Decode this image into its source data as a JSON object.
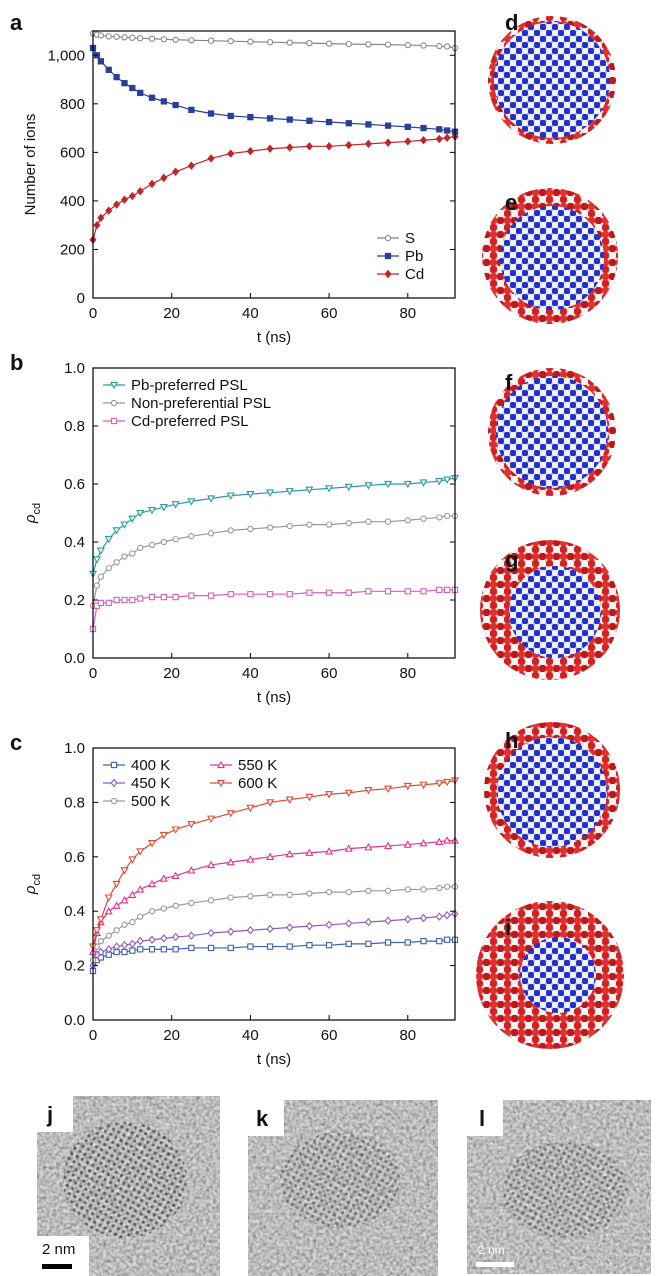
{
  "chart_data": [
    {
      "type": "line",
      "panel_label": "a",
      "y_label": "Number of ions",
      "x_label": "t (ns)",
      "x": [
        0,
        1,
        2,
        4,
        6,
        8,
        10,
        12,
        15,
        18,
        21,
        25,
        30,
        35,
        40,
        45,
        50,
        55,
        60,
        65,
        70,
        75,
        80,
        84,
        88,
        90,
        92
      ],
      "xlim": [
        0,
        92
      ],
      "xticks": [
        0,
        20,
        40,
        60,
        80
      ],
      "ylim": [
        0,
        1100
      ],
      "yticks": [
        0,
        200,
        400,
        600,
        800,
        {
          "value": 1000,
          "label": "1,000"
        }
      ],
      "legend": "lower right",
      "series": [
        {
          "name": "S",
          "color": "#888888",
          "marker": "circle",
          "filled": false,
          "values": [
            1090,
            1085,
            1082,
            1078,
            1076,
            1074,
            1072,
            1070,
            1068,
            1066,
            1064,
            1062,
            1060,
            1058,
            1056,
            1054,
            1052,
            1050,
            1048,
            1046,
            1045,
            1044,
            1042,
            1040,
            1038,
            1036,
            1030
          ]
        },
        {
          "name": "Pb",
          "color": "#2b3f9a",
          "marker": "square",
          "filled": true,
          "values": [
            1030,
            1000,
            975,
            940,
            910,
            885,
            865,
            845,
            825,
            810,
            795,
            775,
            760,
            750,
            745,
            740,
            735,
            730,
            725,
            720,
            715,
            710,
            705,
            700,
            695,
            690,
            685
          ]
        },
        {
          "name": "Cd",
          "color": "#c0262c",
          "marker": "diamond",
          "filled": true,
          "values": [
            240,
            300,
            330,
            360,
            385,
            405,
            420,
            440,
            470,
            495,
            520,
            545,
            575,
            595,
            605,
            615,
            620,
            625,
            625,
            630,
            635,
            640,
            645,
            650,
            655,
            660,
            665
          ]
        }
      ]
    },
    {
      "type": "line",
      "panel_label": "b",
      "y_label": "ρ",
      "y_label_sub": "cd",
      "x_label": "t (ns)",
      "x": [
        0,
        1,
        2,
        4,
        6,
        8,
        10,
        12,
        15,
        18,
        21,
        25,
        30,
        35,
        40,
        45,
        50,
        55,
        60,
        65,
        70,
        75,
        80,
        84,
        88,
        90,
        92
      ],
      "xlim": [
        0,
        92
      ],
      "xticks": [
        0,
        20,
        40,
        60,
        80
      ],
      "ylim": [
        0,
        1
      ],
      "yticks": [
        {
          "value": 0,
          "label": "0.0"
        },
        0.2,
        0.4,
        0.6,
        0.8,
        {
          "value": 1,
          "label": "1.0"
        }
      ],
      "legend": "upper left",
      "series": [
        {
          "name": "Pb-preferred PSL",
          "color": "#2a9d98",
          "marker": "triangle-down",
          "filled": false,
          "values": [
            0.29,
            0.34,
            0.37,
            0.41,
            0.44,
            0.46,
            0.48,
            0.5,
            0.51,
            0.52,
            0.53,
            0.54,
            0.55,
            0.56,
            0.565,
            0.57,
            0.575,
            0.58,
            0.585,
            0.59,
            0.595,
            0.6,
            0.6,
            0.605,
            0.61,
            0.615,
            0.62
          ]
        },
        {
          "name": "Non-preferential PSL",
          "color": "#999999",
          "marker": "circle",
          "filled": false,
          "values": [
            0.18,
            0.25,
            0.28,
            0.31,
            0.33,
            0.35,
            0.36,
            0.38,
            0.39,
            0.4,
            0.41,
            0.42,
            0.43,
            0.44,
            0.445,
            0.45,
            0.455,
            0.46,
            0.46,
            0.465,
            0.47,
            0.47,
            0.475,
            0.48,
            0.485,
            0.49,
            0.49
          ]
        },
        {
          "name": "Cd-preferred PSL",
          "color": "#d660b8",
          "marker": "square",
          "filled": false,
          "values": [
            0.1,
            0.18,
            0.19,
            0.19,
            0.2,
            0.2,
            0.2,
            0.205,
            0.21,
            0.21,
            0.21,
            0.215,
            0.215,
            0.22,
            0.22,
            0.22,
            0.22,
            0.225,
            0.225,
            0.225,
            0.23,
            0.23,
            0.23,
            0.23,
            0.235,
            0.235,
            0.235
          ]
        }
      ]
    },
    {
      "type": "line",
      "panel_label": "c",
      "y_label": "ρ",
      "y_label_sub": "cd",
      "x_label": "t (ns)",
      "x": [
        0,
        1,
        2,
        4,
        6,
        8,
        10,
        12,
        15,
        18,
        21,
        25,
        30,
        35,
        40,
        45,
        50,
        55,
        60,
        65,
        70,
        75,
        80,
        84,
        88,
        90,
        92
      ],
      "xlim": [
        0,
        92
      ],
      "xticks": [
        0,
        20,
        40,
        60,
        80
      ],
      "ylim": [
        0,
        1
      ],
      "yticks": [
        {
          "value": 0,
          "label": "0.0"
        },
        0.2,
        0.4,
        0.6,
        0.8,
        {
          "value": 1,
          "label": "1.0"
        }
      ],
      "legend": "upper left",
      "legend_columns": 2,
      "series": [
        {
          "name": "400 K",
          "color": "#3f5fb0",
          "marker": "square",
          "filled": false,
          "values": [
            0.18,
            0.22,
            0.23,
            0.24,
            0.25,
            0.25,
            0.255,
            0.26,
            0.26,
            0.26,
            0.26,
            0.265,
            0.265,
            0.265,
            0.27,
            0.27,
            0.27,
            0.275,
            0.275,
            0.28,
            0.28,
            0.285,
            0.285,
            0.29,
            0.29,
            0.295,
            0.295
          ]
        },
        {
          "name": "450 K",
          "color": "#8a5cc4",
          "marker": "diamond",
          "filled": false,
          "values": [
            0.2,
            0.24,
            0.25,
            0.26,
            0.27,
            0.275,
            0.28,
            0.29,
            0.295,
            0.3,
            0.305,
            0.31,
            0.32,
            0.325,
            0.33,
            0.335,
            0.34,
            0.345,
            0.35,
            0.355,
            0.36,
            0.365,
            0.37,
            0.375,
            0.38,
            0.385,
            0.39
          ]
        },
        {
          "name": "500 K",
          "color": "#999999",
          "marker": "circle",
          "filled": false,
          "values": [
            0.22,
            0.27,
            0.29,
            0.31,
            0.33,
            0.35,
            0.36,
            0.38,
            0.4,
            0.41,
            0.42,
            0.43,
            0.44,
            0.45,
            0.455,
            0.46,
            0.46,
            0.465,
            0.47,
            0.47,
            0.475,
            0.475,
            0.48,
            0.48,
            0.485,
            0.49,
            0.49
          ]
        },
        {
          "name": "550 K",
          "color": "#e0368a",
          "marker": "triangle-up",
          "filled": false,
          "values": [
            0.25,
            0.32,
            0.36,
            0.4,
            0.42,
            0.44,
            0.46,
            0.48,
            0.5,
            0.52,
            0.53,
            0.55,
            0.57,
            0.58,
            0.59,
            0.6,
            0.61,
            0.615,
            0.62,
            0.63,
            0.635,
            0.64,
            0.645,
            0.65,
            0.655,
            0.66,
            0.66
          ]
        },
        {
          "name": "600 K",
          "color": "#e04a35",
          "marker": "triangle-down",
          "filled": false,
          "values": [
            0.27,
            0.33,
            0.37,
            0.45,
            0.5,
            0.55,
            0.59,
            0.62,
            0.65,
            0.68,
            0.7,
            0.72,
            0.74,
            0.76,
            0.78,
            0.8,
            0.81,
            0.82,
            0.83,
            0.835,
            0.845,
            0.85,
            0.86,
            0.865,
            0.87,
            0.875,
            0.88
          ]
        }
      ]
    }
  ],
  "structures": [
    {
      "label": "d"
    },
    {
      "label": "e"
    },
    {
      "label": "f"
    },
    {
      "label": "g"
    },
    {
      "label": "h"
    },
    {
      "label": "i"
    }
  ],
  "micrographs": [
    {
      "label": "j",
      "scale_bar": "2 nm"
    },
    {
      "label": "k"
    },
    {
      "label": "l",
      "scale_bar": "2 nm"
    }
  ]
}
